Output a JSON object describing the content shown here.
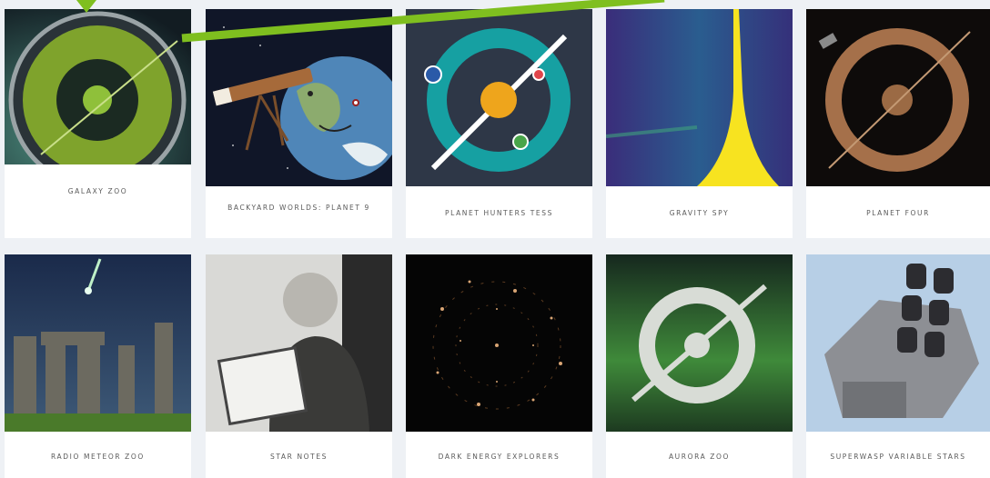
{
  "cards": [
    {
      "title": "GALAXY ZOO"
    },
    {
      "title": "BACKYARD WORLDS: PLANET 9"
    },
    {
      "title": "PLANET HUNTERS TESS"
    },
    {
      "title": "GRAVITY SPY"
    },
    {
      "title": "PLANET FOUR"
    },
    {
      "title": "RADIO METEOR ZOO"
    },
    {
      "title": "STAR NOTES"
    },
    {
      "title": "DARK ENERGY EXPLORERS"
    },
    {
      "title": "AURORA ZOO"
    },
    {
      "title": "SUPERWASP VARIABLE STARS"
    }
  ]
}
